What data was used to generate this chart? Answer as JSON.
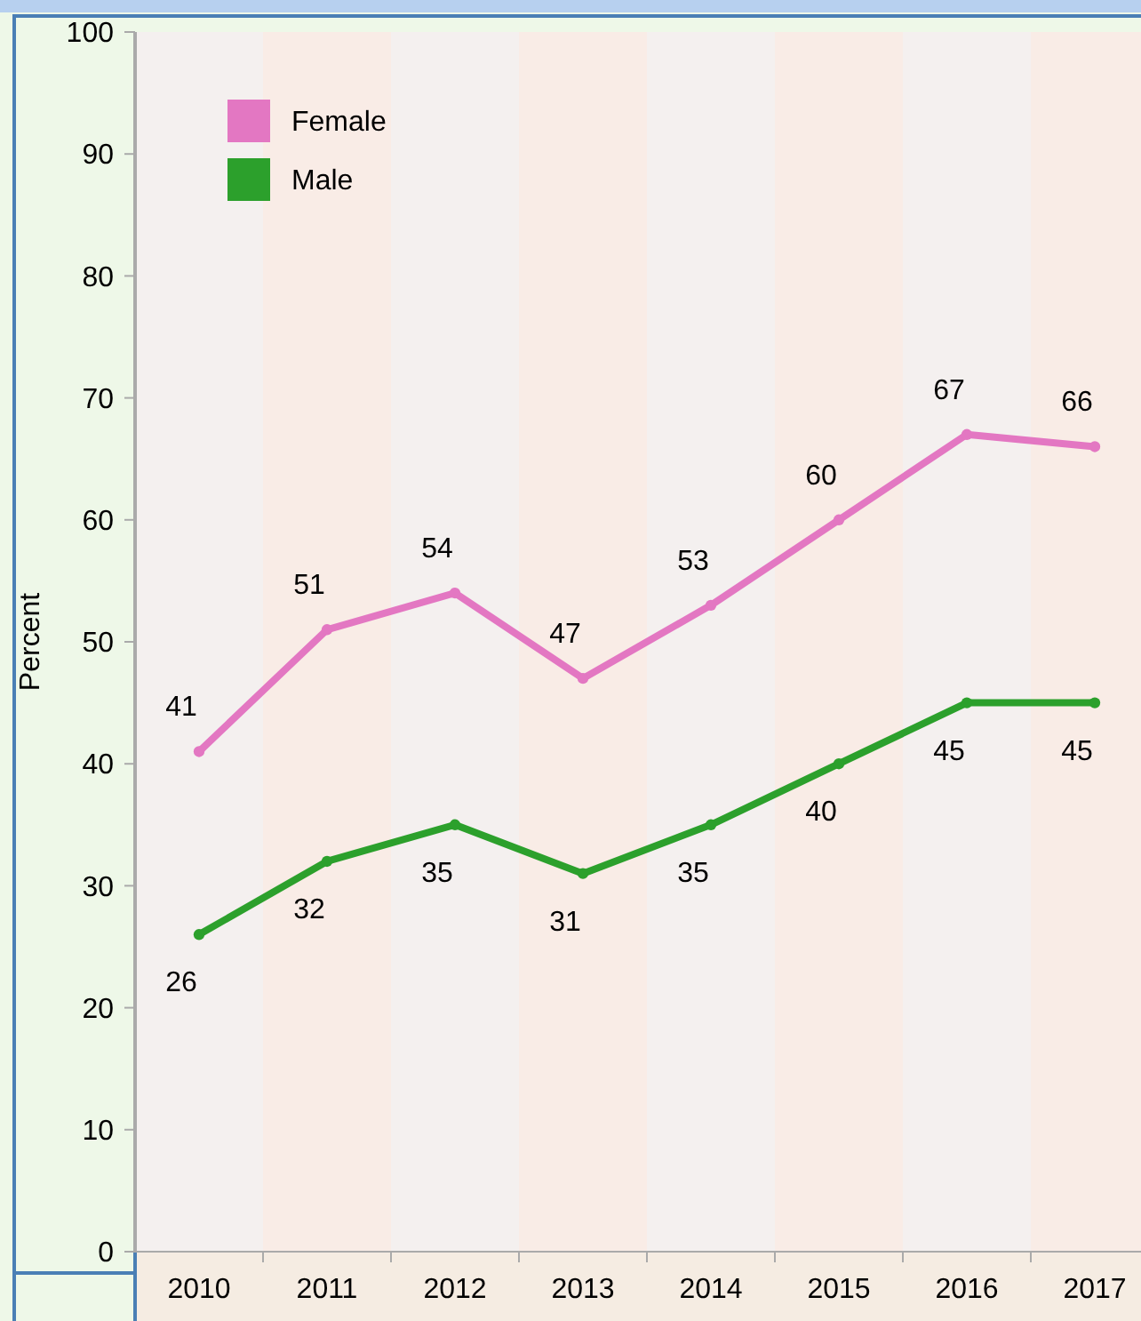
{
  "chart_data": {
    "type": "line",
    "ylabel": "Percent",
    "categories": [
      "2010",
      "2011",
      "2012",
      "2013",
      "2014",
      "2015",
      "2016",
      "2017"
    ],
    "series": [
      {
        "name": "Female",
        "color": "#e377c2",
        "values": [
          41,
          51,
          54,
          47,
          53,
          60,
          67,
          66
        ]
      },
      {
        "name": "Male",
        "color": "#2ca02c",
        "values": [
          26,
          32,
          35,
          31,
          35,
          40,
          45,
          45
        ]
      }
    ],
    "ylim": [
      0,
      100
    ],
    "yticks": [
      0,
      10,
      20,
      30,
      40,
      50,
      60,
      70,
      80,
      90,
      100
    ],
    "grid": false,
    "legend": "top left",
    "marker": "circle",
    "line_style": "solid",
    "data_labels": true
  }
}
